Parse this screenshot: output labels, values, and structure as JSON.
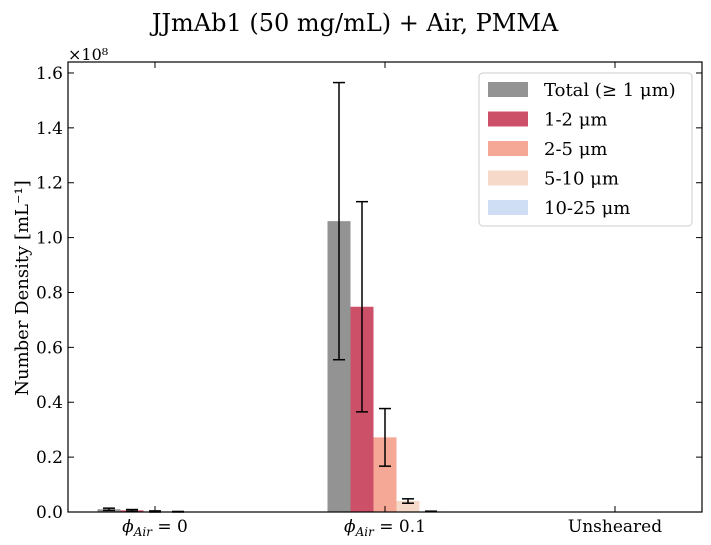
{
  "chart_data": {
    "type": "bar",
    "title": "JJmAb1 (50 mg/mL) + Air, PMMA",
    "xlabel": "",
    "ylabel": "Number Density [mL⁻¹]",
    "y_multiplier": "×10⁸",
    "ylim": [
      0,
      1.64
    ],
    "yticks": [
      "0.0",
      "0.2",
      "0.4",
      "0.6",
      "0.8",
      "1.0",
      "1.2",
      "1.4",
      "1.6"
    ],
    "ytick_values": [
      0,
      0.2,
      0.4,
      0.6,
      0.8,
      1.0,
      1.2,
      1.4,
      1.6
    ],
    "categories": [
      "ϕAir = 0",
      "ϕAir = 0.1",
      "Unsheared"
    ],
    "category_labels": [
      {
        "base": "ϕ",
        "sub": "Air",
        "rest": " = 0"
      },
      {
        "base": "ϕ",
        "sub": "Air",
        "rest": " = 0.1"
      },
      {
        "base": "Unsheared",
        "sub": "",
        "rest": ""
      }
    ],
    "legend_position": "top-right",
    "grid": false,
    "series": [
      {
        "name": "Total (≥ 1 μm)",
        "color": "#939393",
        "values": [
          0.01,
          1.06,
          0.0
        ],
        "errors": [
          0.004,
          0.505,
          0.0
        ]
      },
      {
        "name": "1-2 μm",
        "color": "#cb5068",
        "values": [
          0.006,
          0.748,
          0.0
        ],
        "errors": [
          0.003,
          0.383,
          0.0
        ]
      },
      {
        "name": "2-5 μm",
        "color": "#f5a896",
        "values": [
          0.002,
          0.272,
          0.0
        ],
        "errors": [
          0.002,
          0.105,
          0.0
        ]
      },
      {
        "name": "5-10 μm",
        "color": "#f6d9c8",
        "values": [
          0.001,
          0.04,
          0.0
        ],
        "errors": [
          0.001,
          0.008,
          0.0
        ]
      },
      {
        "name": "10-25 μm",
        "color": "#d0def5",
        "values": [
          0.0,
          0.002,
          0.0
        ],
        "errors": [
          0.0,
          0.001,
          0.0
        ]
      }
    ]
  }
}
